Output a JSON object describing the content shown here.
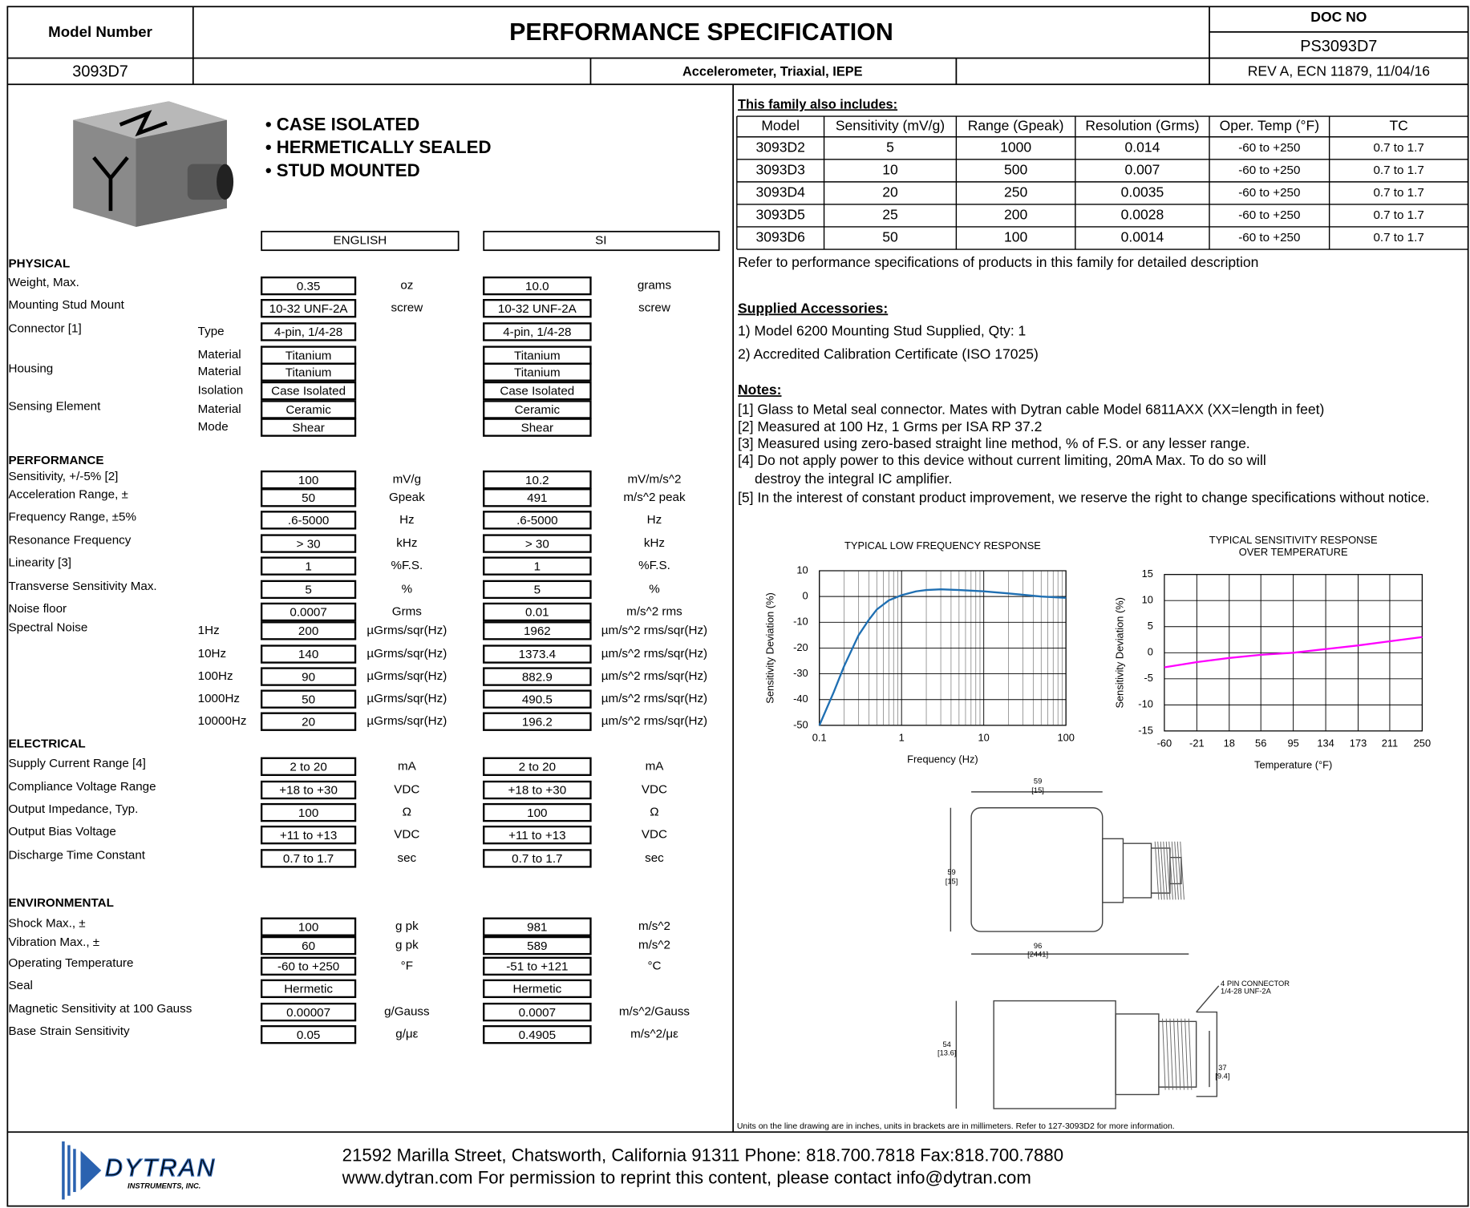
{
  "header": {
    "model_number_label": "Model Number",
    "title": "PERFORMANCE SPECIFICATION",
    "doc_no_label": "DOC NO",
    "doc_no": "PS3093D7",
    "model": "3093D7",
    "description": "Accelerometer, Triaxial, IEPE",
    "revision": "REV A, ECN 11879, 11/04/16"
  },
  "features": [
    "• CASE ISOLATED",
    "• HERMETICALLY SEALED",
    "• STUD MOUNTED"
  ],
  "spec": {
    "columns": [
      "ENGLISH",
      "SI"
    ],
    "sections": [
      {
        "title": "PHYSICAL",
        "rows": [
          {
            "label": "Weight, Max.",
            "en": "0.35",
            "en_unit": "oz",
            "si": "10.0",
            "si_unit": "grams"
          },
          {
            "label": "Mounting Stud Mount",
            "en": "10-32 UNF-2A",
            "en_unit": "screw",
            "si": "10-32 UNF-2A",
            "si_unit": "screw"
          },
          {
            "label": "Connector [1]",
            "sub": "Type",
            "en": "4-pin, 1/4-28",
            "si": "4-pin, 1/4-28"
          },
          {
            "sub": "Material",
            "en": "Titanium",
            "si": "Titanium"
          },
          {
            "label": "Housing",
            "sub": "Material",
            "en": "Titanium",
            "si": "Titanium"
          },
          {
            "sub": "Isolation",
            "en": "Case Isolated",
            "si": "Case Isolated"
          },
          {
            "label": "Sensing Element",
            "sub": "Material",
            "en": "Ceramic",
            "si": "Ceramic"
          },
          {
            "sub": "Mode",
            "en": "Shear",
            "si": "Shear"
          }
        ]
      },
      {
        "title": "PERFORMANCE",
        "rows": [
          {
            "label": "Sensitivity, +/-5% [2]",
            "en": "100",
            "en_unit": "mV/g",
            "si": "10.2",
            "si_unit": "mV/m/s^2"
          },
          {
            "label": "Acceleration Range, ±",
            "en": "50",
            "en_unit": "Gpeak",
            "si": "491",
            "si_unit": "m/s^2 peak"
          },
          {
            "label": "Frequency Range, ±5%",
            "en": ".6-5000",
            "en_unit": "Hz",
            "si": ".6-5000",
            "si_unit": "Hz"
          },
          {
            "label": "Resonance Frequency",
            "en": "> 30",
            "en_unit": "kHz",
            "si": "> 30",
            "si_unit": "kHz"
          },
          {
            "label": "Linearity [3]",
            "en": "1",
            "en_unit": "%F.S.",
            "si": "1",
            "si_unit": "%F.S."
          },
          {
            "label": "Transverse Sensitivity Max.",
            "en": "5",
            "en_unit": "%",
            "si": "5",
            "si_unit": "%"
          },
          {
            "label": "Noise floor",
            "en": "0.0007",
            "en_unit": "Grms",
            "si": "0.01",
            "si_unit": "m/s^2 rms"
          },
          {
            "label": "Spectral Noise",
            "sub": "1Hz",
            "en": "200",
            "en_unit": "µGrms/sqr(Hz)",
            "si": "1962",
            "si_unit": "µm/s^2 rms/sqr(Hz)"
          },
          {
            "sub": "10Hz",
            "en": "140",
            "en_unit": "µGrms/sqr(Hz)",
            "si": "1373.4",
            "si_unit": "µm/s^2 rms/sqr(Hz)"
          },
          {
            "sub": "100Hz",
            "en": "90",
            "en_unit": "µGrms/sqr(Hz)",
            "si": "882.9",
            "si_unit": "µm/s^2 rms/sqr(Hz)"
          },
          {
            "sub": "1000Hz",
            "en": "50",
            "en_unit": "µGrms/sqr(Hz)",
            "si": "490.5",
            "si_unit": "µm/s^2 rms/sqr(Hz)"
          },
          {
            "sub": "10000Hz",
            "en": "20",
            "en_unit": "µGrms/sqr(Hz)",
            "si": "196.2",
            "si_unit": "µm/s^2 rms/sqr(Hz)"
          }
        ]
      },
      {
        "title": "ELECTRICAL",
        "rows": [
          {
            "label": "Supply Current Range  [4]",
            "en": "2 to 20",
            "en_unit": "mA",
            "si": "2 to 20",
            "si_unit": "mA"
          },
          {
            "label": "Compliance Voltage Range",
            "en": "+18 to +30",
            "en_unit": "VDC",
            "si": "+18 to +30",
            "si_unit": "VDC"
          },
          {
            "label": "Output Impedance, Typ.",
            "en": "100",
            "en_unit": "Ω",
            "si": "100",
            "si_unit": "Ω"
          },
          {
            "label": "Output Bias Voltage",
            "en": "+11 to +13",
            "en_unit": "VDC",
            "si": "+11 to +13",
            "si_unit": "VDC"
          },
          {
            "label": "Discharge Time Constant",
            "en": "0.7 to 1.7",
            "en_unit": "sec",
            "si": "0.7 to 1.7",
            "si_unit": "sec"
          }
        ]
      },
      {
        "title": "ENVIRONMENTAL",
        "rows": [
          {
            "label": "Shock Max., ±",
            "en": "100",
            "en_unit": "g pk",
            "si": "981",
            "si_unit": "m/s^2"
          },
          {
            "label": "Vibration Max., ±",
            "en": "60",
            "en_unit": "g pk",
            "si": "589",
            "si_unit": "m/s^2"
          },
          {
            "label": "Operating Temperature",
            "en": "-60 to +250",
            "en_unit": "°F",
            "si": "-51 to +121",
            "si_unit": "°C"
          },
          {
            "label": "Seal",
            "en": "Hermetic",
            "si": "Hermetic"
          },
          {
            "label": "Magnetic Sensitivity at 100 Gauss",
            "en": "0.00007",
            "en_unit": "g/Gauss",
            "si": "0.0007",
            "si_unit": "m/s^2/Gauss"
          },
          {
            "label": "Base Strain Sensitivity",
            "en": "0.05",
            "en_unit": "g/με",
            "si": "0.4905",
            "si_unit": "m/s^2/με"
          }
        ]
      }
    ]
  },
  "family": {
    "title": "This family also includes:",
    "header": [
      "Model",
      "Sensitivity (mV/g)",
      "Range (Gpeak)",
      "Resolution (Grms)",
      "Oper. Temp (°F)",
      "TC"
    ],
    "rows": [
      [
        "3093D2",
        "5",
        "1000",
        "0.014",
        "-60 to +250",
        "0.7 to 1.7"
      ],
      [
        "3093D3",
        "10",
        "500",
        "0.007",
        "-60 to +250",
        "0.7 to 1.7"
      ],
      [
        "3093D4",
        "20",
        "250",
        "0.0035",
        "-60 to +250",
        "0.7 to 1.7"
      ],
      [
        "3093D5",
        "25",
        "200",
        "0.0028",
        "-60 to +250",
        "0.7 to 1.7"
      ],
      [
        "3093D6",
        "50",
        "100",
        "0.0014",
        "-60 to +250",
        "0.7 to 1.7"
      ]
    ],
    "note": "Refer to performance specifications of products in this family for detailed description"
  },
  "accessories": {
    "title": "Supplied Accessories:",
    "items": [
      "1) Model 6200 Mounting Stud Supplied, Qty: 1",
      "2) Accredited Calibration Certificate (ISO 17025)"
    ]
  },
  "notes": {
    "title": "Notes:",
    "lines": [
      "[1] Glass to Metal seal connector. Mates with Dytran cable Model 6811AXX (XX=length in feet)",
      "[2] Measured at 100 Hz, 1 Grms per ISA RP 37.2",
      "[3] Measured using zero-based straight line method, % of F.S. or any lesser range.",
      "[4] Do not apply power to this device without current limiting, 20mA Max. To do so will",
      "destroy the integral IC amplifier.",
      "[5] In the interest of constant product improvement, we reserve the right to change specifications without notice."
    ]
  },
  "chart_data": [
    {
      "type": "line",
      "title": "TYPICAL LOW FREQUENCY RESPONSE",
      "xlabel": "Frequency (Hz)",
      "ylabel": "Sensitivity Deviation (%)",
      "log_x": true,
      "grid": true,
      "color": "#1f6fb2",
      "x": [
        0.1,
        0.15,
        0.2,
        0.3,
        0.4,
        0.5,
        0.7,
        1,
        1.5,
        2,
        3,
        5,
        10,
        20,
        50,
        100
      ],
      "values": [
        -50,
        -37,
        -27,
        -15,
        -9,
        -5,
        -1.5,
        0.5,
        2,
        2.5,
        2.8,
        2.5,
        2,
        1.2,
        0,
        -0.5
      ],
      "xlim": [
        0.1,
        100
      ],
      "xticks": [
        0.1,
        1,
        10,
        100
      ],
      "ylim": [
        -50,
        10
      ],
      "yticks": [
        -50,
        -40,
        -30,
        -20,
        -10,
        0,
        10
      ]
    },
    {
      "type": "line",
      "title": "TYPICAL SENSITIVITY RESPONSE",
      "subtitle": "OVER TEMPERATURE",
      "xlabel": "Temperature (°F)",
      "ylabel": "Sensitivity Deviation (%)",
      "log_x": false,
      "grid": true,
      "color": "#ff00ff",
      "x": [
        -60,
        -21,
        18,
        56,
        95,
        134,
        173,
        211,
        250
      ],
      "values": [
        -2.8,
        -1.8,
        -1,
        -0.4,
        0,
        0.7,
        1.4,
        2.2,
        3
      ],
      "xlim": [
        -60,
        250
      ],
      "xticks": [
        -60,
        -21,
        18,
        56,
        95,
        134,
        173,
        211,
        250
      ],
      "ylim": [
        -15,
        15
      ],
      "yticks": [
        -15,
        -10,
        -5,
        0,
        5,
        10,
        15
      ]
    }
  ],
  "drawing": {
    "labels": [
      "59",
      "[15]",
      "59",
      "[15]",
      "96",
      "[2441]",
      "4 PIN CONNECTOR",
      "1/4-28 UNF-2A",
      "54",
      "[13.6]",
      "37",
      "[9.4]"
    ],
    "note": "Units on the line drawing are in inches, units in brackets are in millimeters. Refer to 127-3093D2 for more information."
  },
  "footer": {
    "logo": "DYTRAN",
    "logo_sub": "INSTRUMENTS, INC.",
    "address": "21592 Marilla Street, Chatsworth, California 91311  Phone: 818.700.7818  Fax:818.700.7880",
    "web": "www.dytran.com  For permission to reprint this content, please contact info@dytran.com"
  }
}
